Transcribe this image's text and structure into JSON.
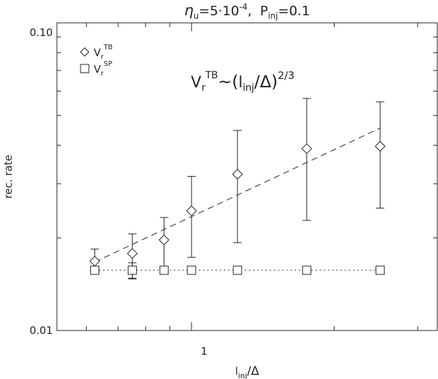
{
  "chart_data": {
    "type": "scatter",
    "title": "η_u=5·10^-4, P_inj=0.1",
    "title_parts": {
      "eta": "η",
      "eta_sub": "u",
      "eq": "=5·10",
      "exp": "-4",
      "sep": ",  P",
      "p_sub": "inj",
      "p_val": "=0.1"
    },
    "xlabel": "l_inj/Δ",
    "xlabel_parts": {
      "l": "l",
      "sub": "inj",
      "rest": "/Δ"
    },
    "ylabel": "rec. rate",
    "x_scale": "log",
    "y_scale": "log",
    "xlim": [
      0.52,
      3.3
    ],
    "ylim": [
      0.01,
      0.1
    ],
    "x_tick_labels": [
      {
        "value": 1,
        "label": "1"
      }
    ],
    "y_tick_labels": [
      {
        "value": 0.1,
        "label": "0.10"
      },
      {
        "value": 0.01,
        "label": "0.01"
      }
    ],
    "legend_position": "top-left",
    "series": [
      {
        "name": "V_r^TB",
        "name_parts": {
          "main": "V",
          "sub": "r",
          "sup": "TB"
        },
        "marker": "diamond",
        "x": [
          0.625,
          0.75,
          0.875,
          1.0,
          1.25,
          1.75,
          2.5
        ],
        "y": [
          0.0168,
          0.0178,
          0.0197,
          0.0245,
          0.0322,
          0.039,
          0.0397
        ],
        "err_low": [
          0.0156,
          0.0147,
          0.0157,
          0.0173,
          0.0193,
          0.0228,
          0.025
        ],
        "err_high": [
          0.0184,
          0.0206,
          0.0233,
          0.0317,
          0.0447,
          0.0568,
          0.0554
        ]
      },
      {
        "name": "V_r^SP",
        "name_parts": {
          "main": "V",
          "sub": "r",
          "sup": "SP"
        },
        "marker": "square",
        "x": [
          0.625,
          0.75,
          0.875,
          1.0,
          1.25,
          1.75,
          2.5
        ],
        "y": [
          0.0157,
          0.0157,
          0.0157,
          0.0157,
          0.0157,
          0.0157,
          0.0157
        ],
        "err_low": [
          0.0155,
          0.0148,
          null,
          null,
          null,
          null,
          null
        ],
        "err_high": [
          0.0159,
          0.0166,
          null,
          null,
          null,
          null,
          null
        ]
      }
    ],
    "fit_lines": [
      {
        "style": "dashed",
        "x": [
          0.625,
          2.5
        ],
        "y": [
          0.0167,
          0.0455
        ]
      },
      {
        "style": "dotted",
        "x": [
          0.625,
          2.5
        ],
        "y": [
          0.0157,
          0.0157
        ]
      }
    ],
    "annotation": {
      "text": "V_r^TB~(l_inj/Δ)^2/3",
      "parts": {
        "V": "V",
        "r": "r",
        "TB": "TB",
        "tilde": "~(",
        "l": "l",
        "inj": "inj",
        "rest": "/Δ)",
        "exp": "2/3"
      }
    }
  }
}
